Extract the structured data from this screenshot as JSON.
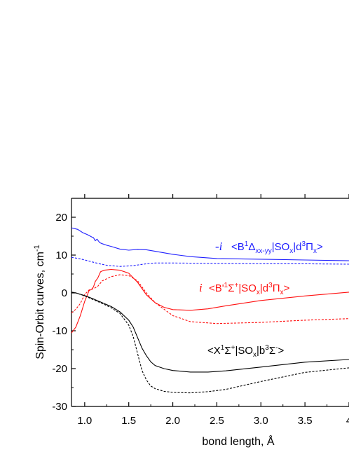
{
  "chart_data": {
    "type": "line",
    "title": "",
    "xlabel": "bond length, Å",
    "ylabel": "Spin-Orbit curves, cm",
    "ylabel_sup": "-1",
    "xlim": [
      0.85,
      4.0
    ],
    "ylim": [
      -30,
      25
    ],
    "x_ticks": [
      1.0,
      1.5,
      2.0,
      2.5,
      3.0,
      3.5,
      4.0
    ],
    "x_tick_labels": [
      "1.0",
      "1.5",
      "2.0",
      "2.5",
      "3.0",
      "3.5",
      "4"
    ],
    "y_ticks": [
      -30,
      -20,
      -10,
      0,
      10,
      20
    ],
    "y_tick_labels": [
      "-30",
      "-20",
      "-10",
      "0",
      "10",
      "20"
    ],
    "grid": false,
    "legend": "none",
    "series": [
      {
        "color": "#1f1fff",
        "dash": false,
        "x": [
          0.85,
          0.92,
          0.98,
          1.03,
          1.08,
          1.1,
          1.12,
          1.14,
          1.17,
          1.2,
          1.25,
          1.3,
          1.4,
          1.5,
          1.6,
          1.7,
          1.8,
          2.0,
          2.2,
          2.5,
          3.0,
          3.5,
          4.0
        ],
        "y": [
          17.2,
          16.8,
          15.9,
          15.4,
          14.8,
          14.6,
          13.8,
          14.2,
          13.3,
          13.0,
          12.6,
          12.3,
          11.6,
          11.3,
          11.5,
          11.4,
          11.0,
          10.2,
          9.6,
          9.1,
          8.9,
          8.7,
          8.5
        ]
      },
      {
        "color": "#1f1fff",
        "dash": true,
        "x": [
          0.85,
          0.95,
          1.05,
          1.15,
          1.25,
          1.4,
          1.55,
          1.7,
          1.8,
          2.0,
          2.5,
          3.0,
          3.5,
          4.0
        ],
        "y": [
          9.4,
          9.0,
          8.4,
          7.8,
          7.3,
          7.0,
          7.2,
          7.7,
          7.9,
          7.9,
          7.8,
          7.7,
          7.7,
          7.6
        ]
      },
      {
        "color": "#ff1010",
        "dash": false,
        "x": [
          0.85,
          0.9,
          0.95,
          1.0,
          1.05,
          1.08,
          1.1,
          1.12,
          1.15,
          1.18,
          1.22,
          1.3,
          1.4,
          1.5,
          1.6,
          1.7,
          1.8,
          1.9,
          2.0,
          2.2,
          2.4,
          2.6,
          3.0,
          3.5,
          4.0
        ],
        "y": [
          -10.6,
          -9.0,
          -6.0,
          -2.2,
          0.6,
          1.0,
          1.6,
          3.0,
          4.0,
          5.6,
          6.0,
          6.2,
          6.0,
          5.2,
          2.8,
          -0.5,
          -2.6,
          -3.8,
          -4.4,
          -4.6,
          -4.2,
          -3.4,
          -2.0,
          -0.8,
          0.2
        ]
      },
      {
        "color": "#ff1010",
        "dash": true,
        "x": [
          0.85,
          0.9,
          0.95,
          1.0,
          1.05,
          1.1,
          1.15,
          1.2,
          1.3,
          1.4,
          1.5,
          1.6,
          1.7,
          1.8,
          2.0,
          2.2,
          2.5,
          3.0,
          3.5,
          4.0
        ],
        "y": [
          -5.3,
          -4.3,
          -2.8,
          -0.4,
          0.8,
          1.1,
          1.8,
          3.2,
          4.3,
          4.8,
          4.6,
          3.2,
          0.0,
          -2.6,
          -6.0,
          -7.6,
          -8.1,
          -7.8,
          -7.2,
          -6.8
        ]
      },
      {
        "color": "#000000",
        "dash": false,
        "x": [
          0.85,
          0.9,
          1.0,
          1.1,
          1.2,
          1.3,
          1.4,
          1.5,
          1.55,
          1.6,
          1.65,
          1.7,
          1.75,
          1.8,
          1.9,
          2.0,
          2.2,
          2.4,
          2.6,
          3.0,
          3.5,
          4.0
        ],
        "y": [
          0.2,
          0.0,
          -0.7,
          -1.6,
          -2.6,
          -3.6,
          -5.0,
          -7.2,
          -9.0,
          -11.8,
          -14.6,
          -16.6,
          -18.2,
          -19.2,
          -20.0,
          -20.5,
          -20.9,
          -20.9,
          -20.6,
          -19.6,
          -18.3,
          -17.6
        ]
      },
      {
        "color": "#000000",
        "dash": true,
        "x": [
          0.85,
          0.9,
          1.0,
          1.1,
          1.2,
          1.3,
          1.4,
          1.5,
          1.55,
          1.6,
          1.65,
          1.7,
          1.75,
          1.8,
          1.9,
          2.0,
          2.2,
          2.4,
          2.6,
          3.0,
          3.5,
          4.0
        ],
        "y": [
          0.2,
          0.0,
          -0.8,
          -1.8,
          -2.8,
          -3.9,
          -5.4,
          -8.5,
          -11.5,
          -16.0,
          -20.5,
          -23.0,
          -24.6,
          -25.3,
          -26.0,
          -26.3,
          -26.4,
          -26.1,
          -25.5,
          -23.4,
          -21.0,
          -19.8
        ]
      }
    ],
    "annotations": [
      {
        "color": "#1f1fff",
        "prefix": "-i",
        "text": "<B¹Δxx-yy|SOx|d³Πx>"
      },
      {
        "color": "#ff1010",
        "prefix": "i",
        "text": "<B'¹Σ⁺|SOx|d³Πx>"
      },
      {
        "color": "#000000",
        "prefix": "",
        "text": "<X¹Σ⁺|SOx|b³Σ⁻>"
      }
    ]
  }
}
